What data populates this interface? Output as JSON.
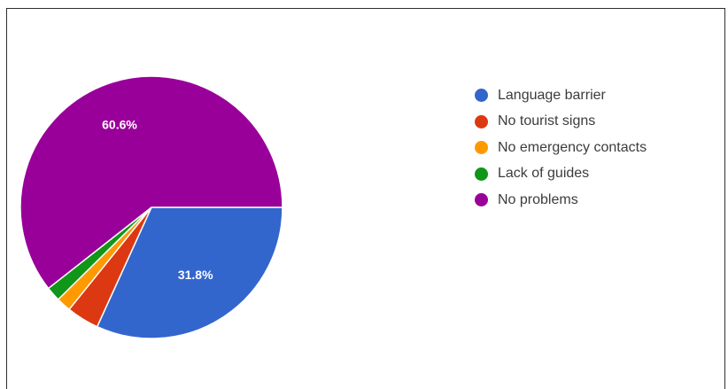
{
  "chart_data": {
    "type": "pie",
    "categories": [
      "Language barrier",
      "No tourist signs",
      "No emergency contacts",
      "Lack of guides",
      "No problems"
    ],
    "values": [
      31.8,
      4.0,
      1.8,
      1.8,
      60.6
    ],
    "colors": [
      "#3366cc",
      "#dc3912",
      "#ff9900",
      "#109618",
      "#990099"
    ],
    "data_labels": [
      "31.8%",
      "",
      "",
      "",
      "60.6%"
    ],
    "start_angle_deg": 90,
    "direction": "clockwise",
    "legend_position": "right"
  }
}
